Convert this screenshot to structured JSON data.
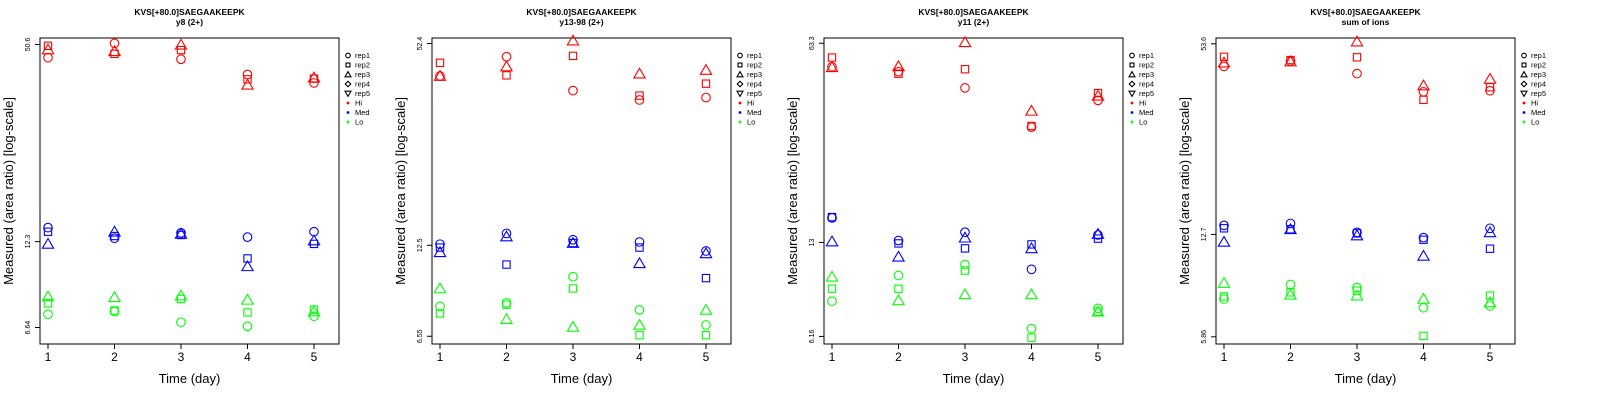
{
  "colors": {
    "Hi": "#ff0000",
    "Med": "#0000ff",
    "Lo": "#00ff00",
    "axis": "#000000"
  },
  "legend_entries": [
    {
      "label": "rep1",
      "shape": "circle"
    },
    {
      "label": "rep2",
      "shape": "square"
    },
    {
      "label": "rep3",
      "shape": "triangle-up"
    },
    {
      "label": "rep4",
      "shape": "diamond"
    },
    {
      "label": "rep5",
      "shape": "triangle-down"
    },
    {
      "label": "Hi",
      "shape": "dot-red"
    },
    {
      "label": "Med",
      "shape": "dot-blue"
    },
    {
      "label": "Lo",
      "shape": "dot-green"
    }
  ],
  "chart_data": [
    {
      "type": "scatter",
      "title": "KVS[+80.0]SAEGAAKEEPK",
      "subtitle": "y8 (2+)",
      "xlabel": "Time (day)",
      "ylabel": "Measured (area ratio) [log-scale]",
      "log_y": true,
      "x_ticks": [
        1,
        2,
        3,
        4,
        5
      ],
      "y_tick_values": [
        6.64,
        12.3,
        50.6
      ],
      "y_tick_labels": [
        "6.64",
        "12.3",
        "50.6"
      ],
      "ylim": [
        5.9,
        53.0
      ],
      "legend_position": "right",
      "series": [
        {
          "name": "Hi",
          "marker": "circle",
          "x": [
            1,
            2,
            3,
            4,
            5
          ],
          "y": [
            46.0,
            51.0,
            45.5,
            40.8,
            38.4
          ]
        },
        {
          "name": "Hi",
          "marker": "square",
          "x": [
            1,
            2,
            3,
            4,
            5
          ],
          "y": [
            50.1,
            47.3,
            48.6,
            39.4,
            39.6
          ]
        },
        {
          "name": "Hi",
          "marker": "triangle-up",
          "x": [
            1,
            2,
            3,
            4,
            5
          ],
          "y": [
            48.8,
            48.2,
            50.5,
            37.9,
            39.9
          ]
        },
        {
          "name": "Med",
          "marker": "circle",
          "x": [
            1,
            2,
            3,
            4,
            5
          ],
          "y": [
            13.6,
            12.6,
            13.1,
            12.7,
            13.2
          ]
        },
        {
          "name": "Med",
          "marker": "square",
          "x": [
            1,
            2,
            3,
            4,
            5
          ],
          "y": [
            13.2,
            12.8,
            12.9,
            10.9,
            12.1
          ]
        },
        {
          "name": "Med",
          "marker": "triangle-up",
          "x": [
            1,
            2,
            3,
            4,
            5
          ],
          "y": [
            12.1,
            13.2,
            13.0,
            10.3,
            12.4
          ]
        },
        {
          "name": "Lo",
          "marker": "circle",
          "x": [
            1,
            2,
            3,
            4,
            5
          ],
          "y": [
            7.3,
            7.45,
            6.9,
            6.7,
            7.2
          ]
        },
        {
          "name": "Lo",
          "marker": "square",
          "x": [
            1,
            2,
            3,
            4,
            5
          ],
          "y": [
            7.9,
            7.5,
            8.15,
            7.4,
            7.55
          ]
        },
        {
          "name": "Lo",
          "marker": "triangle-up",
          "x": [
            1,
            2,
            3,
            4,
            5
          ],
          "y": [
            8.3,
            8.25,
            8.35,
            8.1,
            7.45
          ]
        }
      ]
    },
    {
      "type": "scatter",
      "title": "KVS[+80.0]SAEGAAKEEPK",
      "subtitle": "y13-98 (2+)",
      "xlabel": "Time (day)",
      "ylabel": "Measured (area ratio) [log-scale]",
      "log_y": true,
      "x_ticks": [
        1,
        2,
        3,
        4,
        5
      ],
      "y_tick_values": [
        6.55,
        12.5,
        52.4
      ],
      "y_tick_labels": [
        "6.55",
        "12.5",
        "52.4"
      ],
      "ylim": [
        6.2,
        54.5
      ],
      "legend_position": "right",
      "series": [
        {
          "name": "Hi",
          "marker": "circle",
          "x": [
            1,
            2,
            3,
            4,
            5
          ],
          "y": [
            41.6,
            47.7,
            37.5,
            35.1,
            35.7
          ]
        },
        {
          "name": "Hi",
          "marker": "square",
          "x": [
            1,
            2,
            3,
            4,
            5
          ],
          "y": [
            45.7,
            41.8,
            48.0,
            36.2,
            39.4
          ]
        },
        {
          "name": "Hi",
          "marker": "triangle-up",
          "x": [
            1,
            2,
            3,
            4,
            5
          ],
          "y": [
            41.6,
            44.5,
            53.5,
            42.3,
            43.4
          ]
        },
        {
          "name": "Med",
          "marker": "circle",
          "x": [
            1,
            2,
            3,
            4,
            5
          ],
          "y": [
            12.6,
            13.6,
            13.0,
            12.8,
            12.0
          ]
        },
        {
          "name": "Med",
          "marker": "square",
          "x": [
            1,
            2,
            3,
            4,
            5
          ],
          "y": [
            12.3,
            10.9,
            12.7,
            12.3,
            9.9
          ]
        },
        {
          "name": "Med",
          "marker": "triangle-up",
          "x": [
            1,
            2,
            3,
            4,
            5
          ],
          "y": [
            11.9,
            13.3,
            12.7,
            11.0,
            11.8
          ]
        },
        {
          "name": "Lo",
          "marker": "circle",
          "x": [
            1,
            2,
            3,
            4,
            5
          ],
          "y": [
            8.1,
            8.3,
            10.0,
            7.9,
            7.1
          ]
        },
        {
          "name": "Lo",
          "marker": "square",
          "x": [
            1,
            2,
            3,
            4,
            5
          ],
          "y": [
            7.7,
            8.2,
            9.2,
            6.6,
            6.6
          ]
        },
        {
          "name": "Lo",
          "marker": "triangle-up",
          "x": [
            1,
            2,
            3,
            4,
            5
          ],
          "y": [
            9.2,
            7.4,
            7.0,
            7.1,
            7.9
          ]
        }
      ]
    },
    {
      "type": "scatter",
      "title": "KVS[+80.0]SAEGAAKEEPK",
      "subtitle": "y11 (2+)",
      "xlabel": "Time (day)",
      "ylabel": "Measured (area ratio) [log-scale]",
      "log_y": true,
      "x_ticks": [
        1,
        2,
        3,
        4,
        5
      ],
      "y_tick_values": [
        6.16,
        13,
        63.3
      ],
      "y_tick_labels": [
        "6.16",
        "13",
        "63.3"
      ],
      "ylim": [
        5.8,
        66.0
      ],
      "legend_position": "right",
      "series": [
        {
          "name": "Hi",
          "marker": "circle",
          "x": [
            1,
            2,
            3,
            4,
            5
          ],
          "y": [
            52.5,
            50.5,
            44.4,
            32.5,
            40.2
          ]
        },
        {
          "name": "Hi",
          "marker": "square",
          "x": [
            1,
            2,
            3,
            4,
            5
          ],
          "y": [
            56.5,
            49.7,
            51.5,
            32.8,
            42.6
          ]
        },
        {
          "name": "Hi",
          "marker": "triangle-up",
          "x": [
            1,
            2,
            3,
            4,
            5
          ],
          "y": [
            52.3,
            52.7,
            63.8,
            37.0,
            41.7
          ]
        },
        {
          "name": "Med",
          "marker": "circle",
          "x": [
            1,
            2,
            3,
            4,
            5
          ],
          "y": [
            15.8,
            13.2,
            14.1,
            10.5,
            13.8
          ]
        },
        {
          "name": "Med",
          "marker": "square",
          "x": [
            1,
            2,
            3,
            4,
            5
          ],
          "y": [
            15.9,
            12.9,
            12.4,
            12.8,
            13.4
          ]
        },
        {
          "name": "Med",
          "marker": "triangle-up",
          "x": [
            1,
            2,
            3,
            4,
            5
          ],
          "y": [
            13.1,
            11.6,
            13.5,
            12.4,
            13.9
          ]
        },
        {
          "name": "Lo",
          "marker": "circle",
          "x": [
            1,
            2,
            3,
            4,
            5
          ],
          "y": [
            8.15,
            10.0,
            10.9,
            6.55,
            7.7
          ]
        },
        {
          "name": "Lo",
          "marker": "square",
          "x": [
            1,
            2,
            3,
            4,
            5
          ],
          "y": [
            9.0,
            9.0,
            10.4,
            6.1,
            7.5
          ]
        },
        {
          "name": "Lo",
          "marker": "triangle-up",
          "x": [
            1,
            2,
            3,
            4,
            5
          ],
          "y": [
            9.9,
            8.2,
            8.6,
            8.6,
            7.5
          ]
        }
      ]
    },
    {
      "type": "scatter",
      "title": "KVS[+80.0]SAEGAAKEEPK",
      "subtitle": "sum of ions",
      "xlabel": "Time (day)",
      "ylabel": "Measured (area ratio) [log-scale]",
      "log_y": true,
      "x_ticks": [
        1,
        2,
        3,
        4,
        5
      ],
      "y_tick_values": [
        5.86,
        12.7,
        53.6
      ],
      "y_tick_labels": [
        "5.86",
        "12.7",
        "53.6"
      ],
      "ylim": [
        5.55,
        56.0
      ],
      "legend_position": "right",
      "series": [
        {
          "name": "Hi",
          "marker": "circle",
          "x": [
            1,
            2,
            3,
            4,
            5
          ],
          "y": [
            45.2,
            47.0,
            42.8,
            37.3,
            37.6
          ]
        },
        {
          "name": "Hi",
          "marker": "square",
          "x": [
            1,
            2,
            3,
            4,
            5
          ],
          "y": [
            48.6,
            47.4,
            48.4,
            35.1,
            38.6
          ]
        },
        {
          "name": "Hi",
          "marker": "triangle-up",
          "x": [
            1,
            2,
            3,
            4,
            5
          ],
          "y": [
            46.5,
            46.9,
            54.5,
            39.1,
            41.1
          ]
        },
        {
          "name": "Med",
          "marker": "circle",
          "x": [
            1,
            2,
            3,
            4,
            5
          ],
          "y": [
            13.6,
            13.8,
            12.9,
            12.4,
            13.3
          ]
        },
        {
          "name": "Med",
          "marker": "square",
          "x": [
            1,
            2,
            3,
            4,
            5
          ],
          "y": [
            13.3,
            13.2,
            12.8,
            12.2,
            11.4
          ]
        },
        {
          "name": "Med",
          "marker": "triangle-up",
          "x": [
            1,
            2,
            3,
            4,
            5
          ],
          "y": [
            12.0,
            13.2,
            12.6,
            10.8,
            12.9
          ]
        },
        {
          "name": "Lo",
          "marker": "circle",
          "x": [
            1,
            2,
            3,
            4,
            5
          ],
          "y": [
            7.8,
            8.7,
            8.5,
            7.3,
            7.4
          ]
        },
        {
          "name": "Lo",
          "marker": "square",
          "x": [
            1,
            2,
            3,
            4,
            5
          ],
          "y": [
            7.95,
            8.2,
            8.3,
            5.9,
            8.0
          ]
        },
        {
          "name": "Lo",
          "marker": "triangle-up",
          "x": [
            1,
            2,
            3,
            4,
            5
          ],
          "y": [
            8.8,
            8.05,
            8.0,
            7.8,
            7.6
          ]
        }
      ]
    }
  ]
}
